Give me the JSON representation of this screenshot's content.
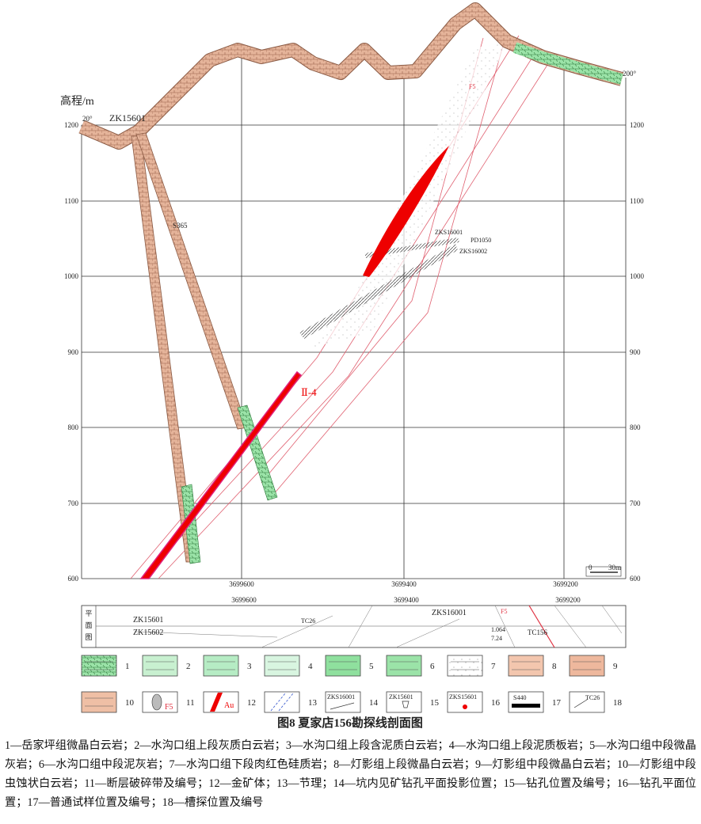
{
  "section": {
    "axis_title": "高程/m",
    "left_elevations": [
      1200,
      1100,
      1000,
      900,
      800,
      700,
      600
    ],
    "right_elevations": [
      1200,
      1100,
      1000,
      900,
      800,
      700,
      600
    ],
    "coordinates": [
      3699600,
      3699400,
      3699200
    ],
    "azimuth_left": "20°",
    "azimuth_right": "200°",
    "hole_zk15601": "ZK15601",
    "sample_s365": "S365",
    "fault": "F5",
    "hole_zks16001": "ZKS16001",
    "adit": "PD1050",
    "hole_zks16002": "ZKS16002",
    "orebody": "Ⅱ-4",
    "scale_zero": "0",
    "scale_length": "30m"
  },
  "plan": {
    "side_label": [
      "平",
      "面",
      "图"
    ],
    "coordinates": [
      3699600,
      3699400,
      3699200
    ],
    "zk15601": "ZK15601",
    "zk15602": "ZK15602",
    "tc26": "TC26",
    "zks16001": "ZKS16001",
    "fault": "F5",
    "value_a": "1.064",
    "value_b": "7.24",
    "tc156": "TC156"
  },
  "legend": {
    "numbers": [
      "1",
      "2",
      "3",
      "4",
      "5",
      "6",
      "7",
      "8",
      "9",
      "10",
      "11",
      "12",
      "13",
      "14",
      "15",
      "16",
      "17",
      "18"
    ],
    "fault_label": "F5",
    "gold_label": "Au",
    "adit_hole_label": "ZKS16001",
    "hole_label": "ZK15601",
    "hole_plan_label": "ZKS15601",
    "sample_label": "S440",
    "trench_label": "TC26"
  },
  "caption": "图8  夏家店156勘探线剖面图",
  "description": "1—岳家坪组微晶白云岩；2—水沟口组上段灰质白云岩；3—水沟口组上段含泥质白云岩；4—水沟口组上段泥质板岩；5—水沟口组中段微晶灰岩；6—水沟口组中段泥灰岩；7—水沟口组下段肉红色硅质岩；8—灯影组上段微晶白云岩；9—灯影组中段微晶白云岩；10—灯影组中段虫蚀状白云岩；11—断层破碎带及编号；12—金矿体；13—节理；14—坑内见矿钻孔平面投影位置；15—钻孔位置及编号；16—钻孔平面位置；17—普通试样位置及编号；18—槽探位置及编号"
}
